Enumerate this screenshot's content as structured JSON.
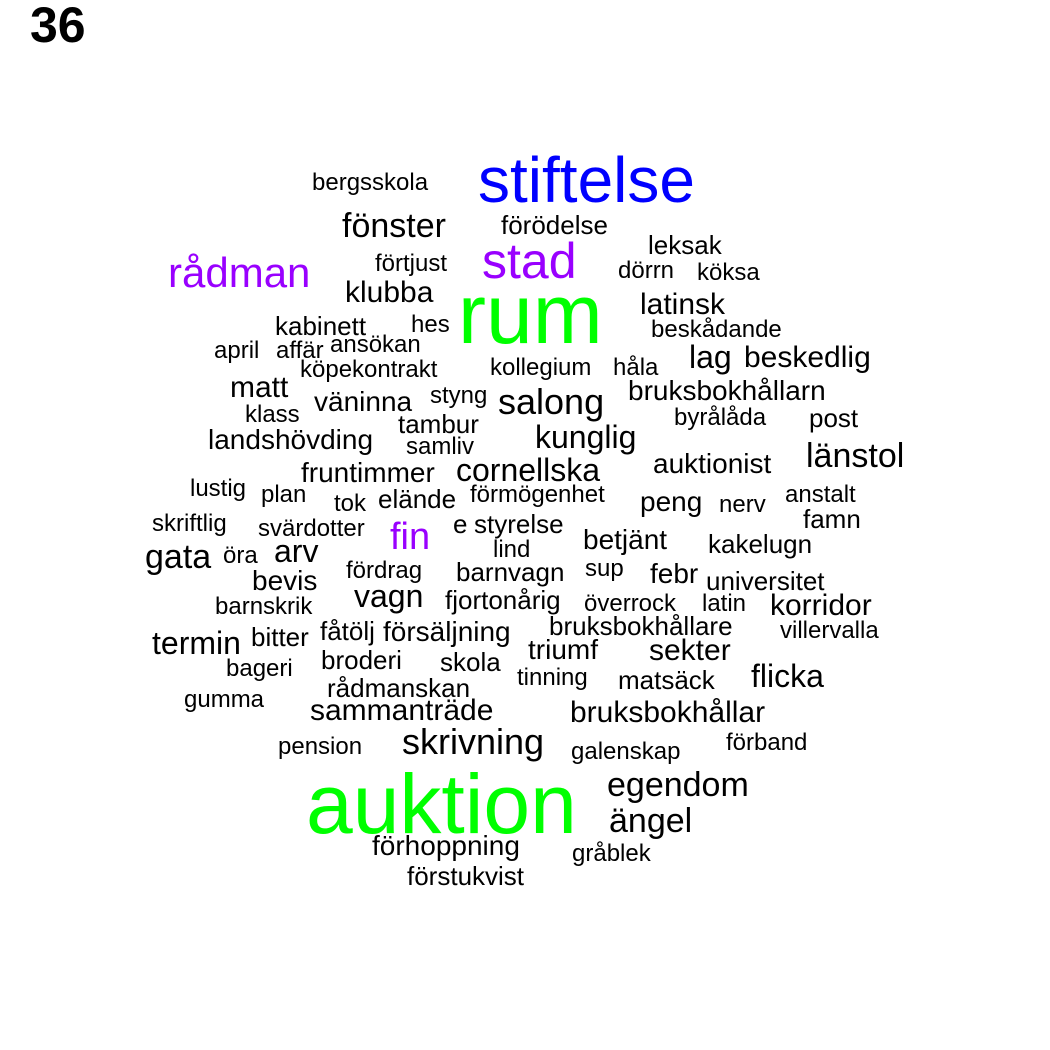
{
  "page_number": "36",
  "colors": {
    "default": "#000000",
    "green": "#00ff00",
    "blue": "#0000ff",
    "purple": "#9900ff"
  },
  "words": [
    {
      "text": "stiftelse",
      "color": "#0000ff"
    },
    {
      "text": "rum",
      "color": "#00ff00"
    },
    {
      "text": "auktion",
      "color": "#00ff00"
    },
    {
      "text": "stad",
      "color": "#9900ff"
    },
    {
      "text": "rådman",
      "color": "#9900ff"
    },
    {
      "text": "fin",
      "color": "#9900ff"
    },
    {
      "text": "bergsskola",
      "color": "#000000"
    },
    {
      "text": "fönster",
      "color": "#000000"
    },
    {
      "text": "förödelse",
      "color": "#000000"
    },
    {
      "text": "leksak",
      "color": "#000000"
    },
    {
      "text": "förtjust",
      "color": "#000000"
    },
    {
      "text": "dörrn",
      "color": "#000000"
    },
    {
      "text": "köksa",
      "color": "#000000"
    },
    {
      "text": "klubba",
      "color": "#000000"
    },
    {
      "text": "latinsk",
      "color": "#000000"
    },
    {
      "text": "kabinett",
      "color": "#000000"
    },
    {
      "text": "hes",
      "color": "#000000"
    },
    {
      "text": "beskådande",
      "color": "#000000"
    },
    {
      "text": "april",
      "color": "#000000"
    },
    {
      "text": "affär",
      "color": "#000000"
    },
    {
      "text": "ansökan",
      "color": "#000000"
    },
    {
      "text": "lag",
      "color": "#000000"
    },
    {
      "text": "beskedlig",
      "color": "#000000"
    },
    {
      "text": "köpekontrakt",
      "color": "#000000"
    },
    {
      "text": "kollegium",
      "color": "#000000"
    },
    {
      "text": "håla",
      "color": "#000000"
    },
    {
      "text": "matt",
      "color": "#000000"
    },
    {
      "text": "bruksbokhållarn",
      "color": "#000000"
    },
    {
      "text": "väninna",
      "color": "#000000"
    },
    {
      "text": "styng",
      "color": "#000000"
    },
    {
      "text": "salong",
      "color": "#000000"
    },
    {
      "text": "klass",
      "color": "#000000"
    },
    {
      "text": "byrålåda",
      "color": "#000000"
    },
    {
      "text": "post",
      "color": "#000000"
    },
    {
      "text": "tambur",
      "color": "#000000"
    },
    {
      "text": "landshövding",
      "color": "#000000"
    },
    {
      "text": "kunglig",
      "color": "#000000"
    },
    {
      "text": "samliv",
      "color": "#000000"
    },
    {
      "text": "länstol",
      "color": "#000000"
    },
    {
      "text": "auktionist",
      "color": "#000000"
    },
    {
      "text": "fruntimmer",
      "color": "#000000"
    },
    {
      "text": "cornellska",
      "color": "#000000"
    },
    {
      "text": "lustig",
      "color": "#000000"
    },
    {
      "text": "plan",
      "color": "#000000"
    },
    {
      "text": "förmögenhet",
      "color": "#000000"
    },
    {
      "text": "anstalt",
      "color": "#000000"
    },
    {
      "text": "tok",
      "color": "#000000"
    },
    {
      "text": "elände",
      "color": "#000000"
    },
    {
      "text": "peng",
      "color": "#000000"
    },
    {
      "text": "nerv",
      "color": "#000000"
    },
    {
      "text": "famn",
      "color": "#000000"
    },
    {
      "text": "skriftlig",
      "color": "#000000"
    },
    {
      "text": "svärdotter",
      "color": "#000000"
    },
    {
      "text": "e",
      "color": "#000000"
    },
    {
      "text": "styrelse",
      "color": "#000000"
    },
    {
      "text": "betjänt",
      "color": "#000000"
    },
    {
      "text": "kakelugn",
      "color": "#000000"
    },
    {
      "text": "gata",
      "color": "#000000"
    },
    {
      "text": "öra",
      "color": "#000000"
    },
    {
      "text": "arv",
      "color": "#000000"
    },
    {
      "text": "lind",
      "color": "#000000"
    },
    {
      "text": "sup",
      "color": "#000000"
    },
    {
      "text": "febr",
      "color": "#000000"
    },
    {
      "text": "bevis",
      "color": "#000000"
    },
    {
      "text": "fördrag",
      "color": "#000000"
    },
    {
      "text": "barnvagn",
      "color": "#000000"
    },
    {
      "text": "universitet",
      "color": "#000000"
    },
    {
      "text": "vagn",
      "color": "#000000"
    },
    {
      "text": "barnskrik",
      "color": "#000000"
    },
    {
      "text": "fjortonårig",
      "color": "#000000"
    },
    {
      "text": "överrock",
      "color": "#000000"
    },
    {
      "text": "latin",
      "color": "#000000"
    },
    {
      "text": "korridor",
      "color": "#000000"
    },
    {
      "text": "termin",
      "color": "#000000"
    },
    {
      "text": "bitter",
      "color": "#000000"
    },
    {
      "text": "fåtölj",
      "color": "#000000"
    },
    {
      "text": "försäljning",
      "color": "#000000"
    },
    {
      "text": "bruksbokhållare",
      "color": "#000000"
    },
    {
      "text": "villervalla",
      "color": "#000000"
    },
    {
      "text": "triumf",
      "color": "#000000"
    },
    {
      "text": "sekter",
      "color": "#000000"
    },
    {
      "text": "broderi",
      "color": "#000000"
    },
    {
      "text": "bageri",
      "color": "#000000"
    },
    {
      "text": "skola",
      "color": "#000000"
    },
    {
      "text": "flicka",
      "color": "#000000"
    },
    {
      "text": "tinning",
      "color": "#000000"
    },
    {
      "text": "matsäck",
      "color": "#000000"
    },
    {
      "text": "rådmanskan",
      "color": "#000000"
    },
    {
      "text": "gumma",
      "color": "#000000"
    },
    {
      "text": "sammanträde",
      "color": "#000000"
    },
    {
      "text": "bruksbokhållar",
      "color": "#000000"
    },
    {
      "text": "skrivning",
      "color": "#000000"
    },
    {
      "text": "pension",
      "color": "#000000"
    },
    {
      "text": "galenskap",
      "color": "#000000"
    },
    {
      "text": "förband",
      "color": "#000000"
    },
    {
      "text": "egendom",
      "color": "#000000"
    },
    {
      "text": "ängel",
      "color": "#000000"
    },
    {
      "text": "förhoppning",
      "color": "#000000"
    },
    {
      "text": "gråblek",
      "color": "#000000"
    },
    {
      "text": "förstukvist",
      "color": "#000000"
    }
  ]
}
